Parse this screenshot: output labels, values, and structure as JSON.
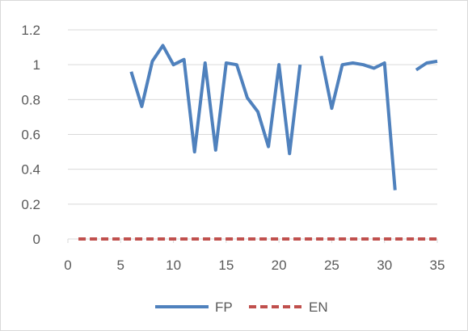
{
  "chart_data": {
    "type": "line",
    "title": "",
    "xlabel": "",
    "ylabel": "",
    "xlim": [
      0,
      35
    ],
    "ylim": [
      0,
      1.2
    ],
    "x_ticks": [
      0,
      5,
      10,
      15,
      20,
      25,
      30,
      35
    ],
    "y_ticks": [
      0,
      0.2,
      0.4,
      0.6,
      0.8,
      1,
      1.2
    ],
    "x_tick_labels": [
      "0",
      "5",
      "10",
      "15",
      "20",
      "25",
      "30",
      "35"
    ],
    "y_tick_labels": [
      "0",
      "0.2",
      "0.4",
      "0.6",
      "0.8",
      "1",
      "1.2"
    ],
    "grid": "horizontal",
    "legend_position": "bottom",
    "series": [
      {
        "name": "FP",
        "color": "#4f81bd",
        "style": "solid",
        "points": [
          [
            6,
            0.96
          ],
          [
            7,
            0.76
          ],
          [
            8,
            1.02
          ],
          [
            9,
            1.11
          ],
          [
            10,
            1.0
          ],
          [
            11,
            1.03
          ],
          [
            12,
            0.5
          ],
          [
            13,
            1.01
          ],
          [
            14,
            0.51
          ],
          [
            15,
            1.01
          ],
          [
            16,
            1.0
          ],
          [
            17,
            0.81
          ],
          [
            18,
            0.73
          ],
          [
            19,
            0.53
          ],
          [
            20,
            1.0
          ],
          [
            21,
            0.49
          ],
          [
            22,
            1.0
          ],
          null,
          [
            24,
            1.05
          ],
          [
            25,
            0.75
          ],
          [
            26,
            1.0
          ],
          [
            27,
            1.01
          ],
          [
            28,
            1.0
          ],
          [
            29,
            0.98
          ],
          [
            30,
            1.01
          ],
          [
            31,
            0.28
          ],
          null,
          [
            33,
            0.97
          ],
          [
            34,
            1.01
          ],
          [
            35,
            1.02
          ]
        ]
      },
      {
        "name": "EN",
        "color": "#c0504d",
        "style": "dashed",
        "points": [
          [
            1,
            0
          ],
          [
            2,
            0
          ],
          [
            3,
            0
          ],
          [
            4,
            0
          ],
          [
            5,
            0
          ],
          [
            6,
            0
          ],
          [
            7,
            0
          ],
          [
            8,
            0
          ],
          [
            9,
            0
          ],
          [
            10,
            0
          ],
          [
            11,
            0
          ],
          [
            12,
            0
          ],
          [
            13,
            0
          ],
          [
            14,
            0
          ],
          [
            15,
            0
          ],
          [
            16,
            0
          ],
          [
            17,
            0
          ],
          [
            18,
            0
          ],
          [
            19,
            0
          ],
          [
            20,
            0
          ],
          [
            21,
            0
          ],
          [
            22,
            0
          ],
          [
            23,
            0
          ],
          [
            24,
            0
          ],
          [
            25,
            0
          ],
          [
            26,
            0
          ],
          [
            27,
            0
          ],
          [
            28,
            0
          ],
          [
            29,
            0
          ],
          [
            30,
            0
          ],
          [
            31,
            0
          ],
          [
            32,
            0
          ],
          [
            33,
            0
          ],
          [
            34,
            0
          ],
          [
            35,
            0
          ]
        ]
      }
    ]
  }
}
